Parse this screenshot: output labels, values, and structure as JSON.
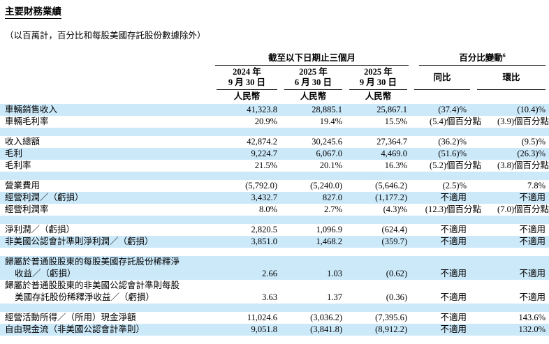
{
  "header": {
    "title": "主要財務業績",
    "subtitle": "（以百萬計，百分比和每股美國存託股份數據除外）"
  },
  "table": {
    "period_group_label": "截至以下日期止三個月",
    "pct_change_label": "百分比變動",
    "pct_change_footnote": "6",
    "currency_label": "人民幣",
    "date_columns": [
      {
        "line1": "2024 年",
        "line2": "9 月 30 日"
      },
      {
        "line1": "2025 年",
        "line2": "6 月 30 日"
      },
      {
        "line1": "2025 年",
        "line2": "9 月 30 日"
      }
    ],
    "change_columns": [
      "同比",
      "環比"
    ],
    "colors": {
      "stripe": "#cce9fa",
      "rule": "#000000"
    },
    "not_applicable_label": "不適用",
    "rows": [
      {
        "label": "車輛銷售收入",
        "values": [
          "41,323.8",
          "28,885.1",
          "25,867.1",
          "(37.4)%",
          "(10.4)%"
        ]
      },
      {
        "label": "車輛毛利率",
        "values": [
          "20.9%",
          "19.4%",
          "15.5%",
          "(5.4)個百分點",
          "(3.9)個百分點"
        ]
      },
      {
        "blank": true
      },
      {
        "label": "收入總額",
        "values": [
          "42,874.2",
          "30,245.6",
          "27,364.7",
          "(36.2)%",
          "(9.5)%"
        ]
      },
      {
        "label": "毛利",
        "values": [
          "9,224.7",
          "6,067.0",
          "4,469.0",
          "(51.6)%",
          "(26.3)%"
        ]
      },
      {
        "label": "毛利率",
        "values": [
          "21.5%",
          "20.1%",
          "16.3%",
          "(5.2)個百分點",
          "(3.8)個百分點"
        ]
      },
      {
        "blank": true
      },
      {
        "label": "營業費用",
        "values": [
          "(5,792.0)",
          "(5,240.0)",
          "(5,646.2)",
          "(2.5)%",
          "7.8%"
        ]
      },
      {
        "label": "經營利潤／（虧損）",
        "values": [
          "3,432.7",
          "827.0",
          "(1,177.2)",
          "不適用",
          "不適用"
        ]
      },
      {
        "label": "經營利潤率",
        "values": [
          "8.0%",
          "2.7%",
          "(4.3)%",
          "(12.3)個百分點",
          "(7.0)個百分點"
        ]
      },
      {
        "blank": true
      },
      {
        "label": "淨利潤／（虧損）",
        "values": [
          "2,820.5",
          "1,096.9",
          "(624.4)",
          "不適用",
          "不適用"
        ]
      },
      {
        "label": "非美國公認會計準則淨利潤／（虧損）",
        "values": [
          "3,851.0",
          "1,468.2",
          "(359.7)",
          "不適用",
          "不適用"
        ]
      },
      {
        "blank": true
      },
      {
        "label": "歸屬於普通股股東的每股美國存託股份稀釋淨",
        "label2": "收益／（虧損）",
        "values": [
          "2.66",
          "1.03",
          "(0.62)",
          "不適用",
          "不適用"
        ]
      },
      {
        "label": "歸屬於普通股股東的非美國公認會計準則每股",
        "label2": "美國存託股份稀釋淨收益／（虧損）",
        "values": [
          "3.63",
          "1.37",
          "(0.36)",
          "不適用",
          "不適用"
        ]
      },
      {
        "blank": true
      },
      {
        "label": "經營活動所得／（所用）現金淨額",
        "values": [
          "11,024.6",
          "(3,036.2)",
          "(7,395.6)",
          "不適用",
          "143.6%"
        ]
      },
      {
        "label": "自由現金流（非美國公認會計準則）",
        "values": [
          "9,051.8",
          "(3,841.8)",
          "(8,912.2)",
          "不適用",
          "132.0%"
        ]
      }
    ]
  }
}
